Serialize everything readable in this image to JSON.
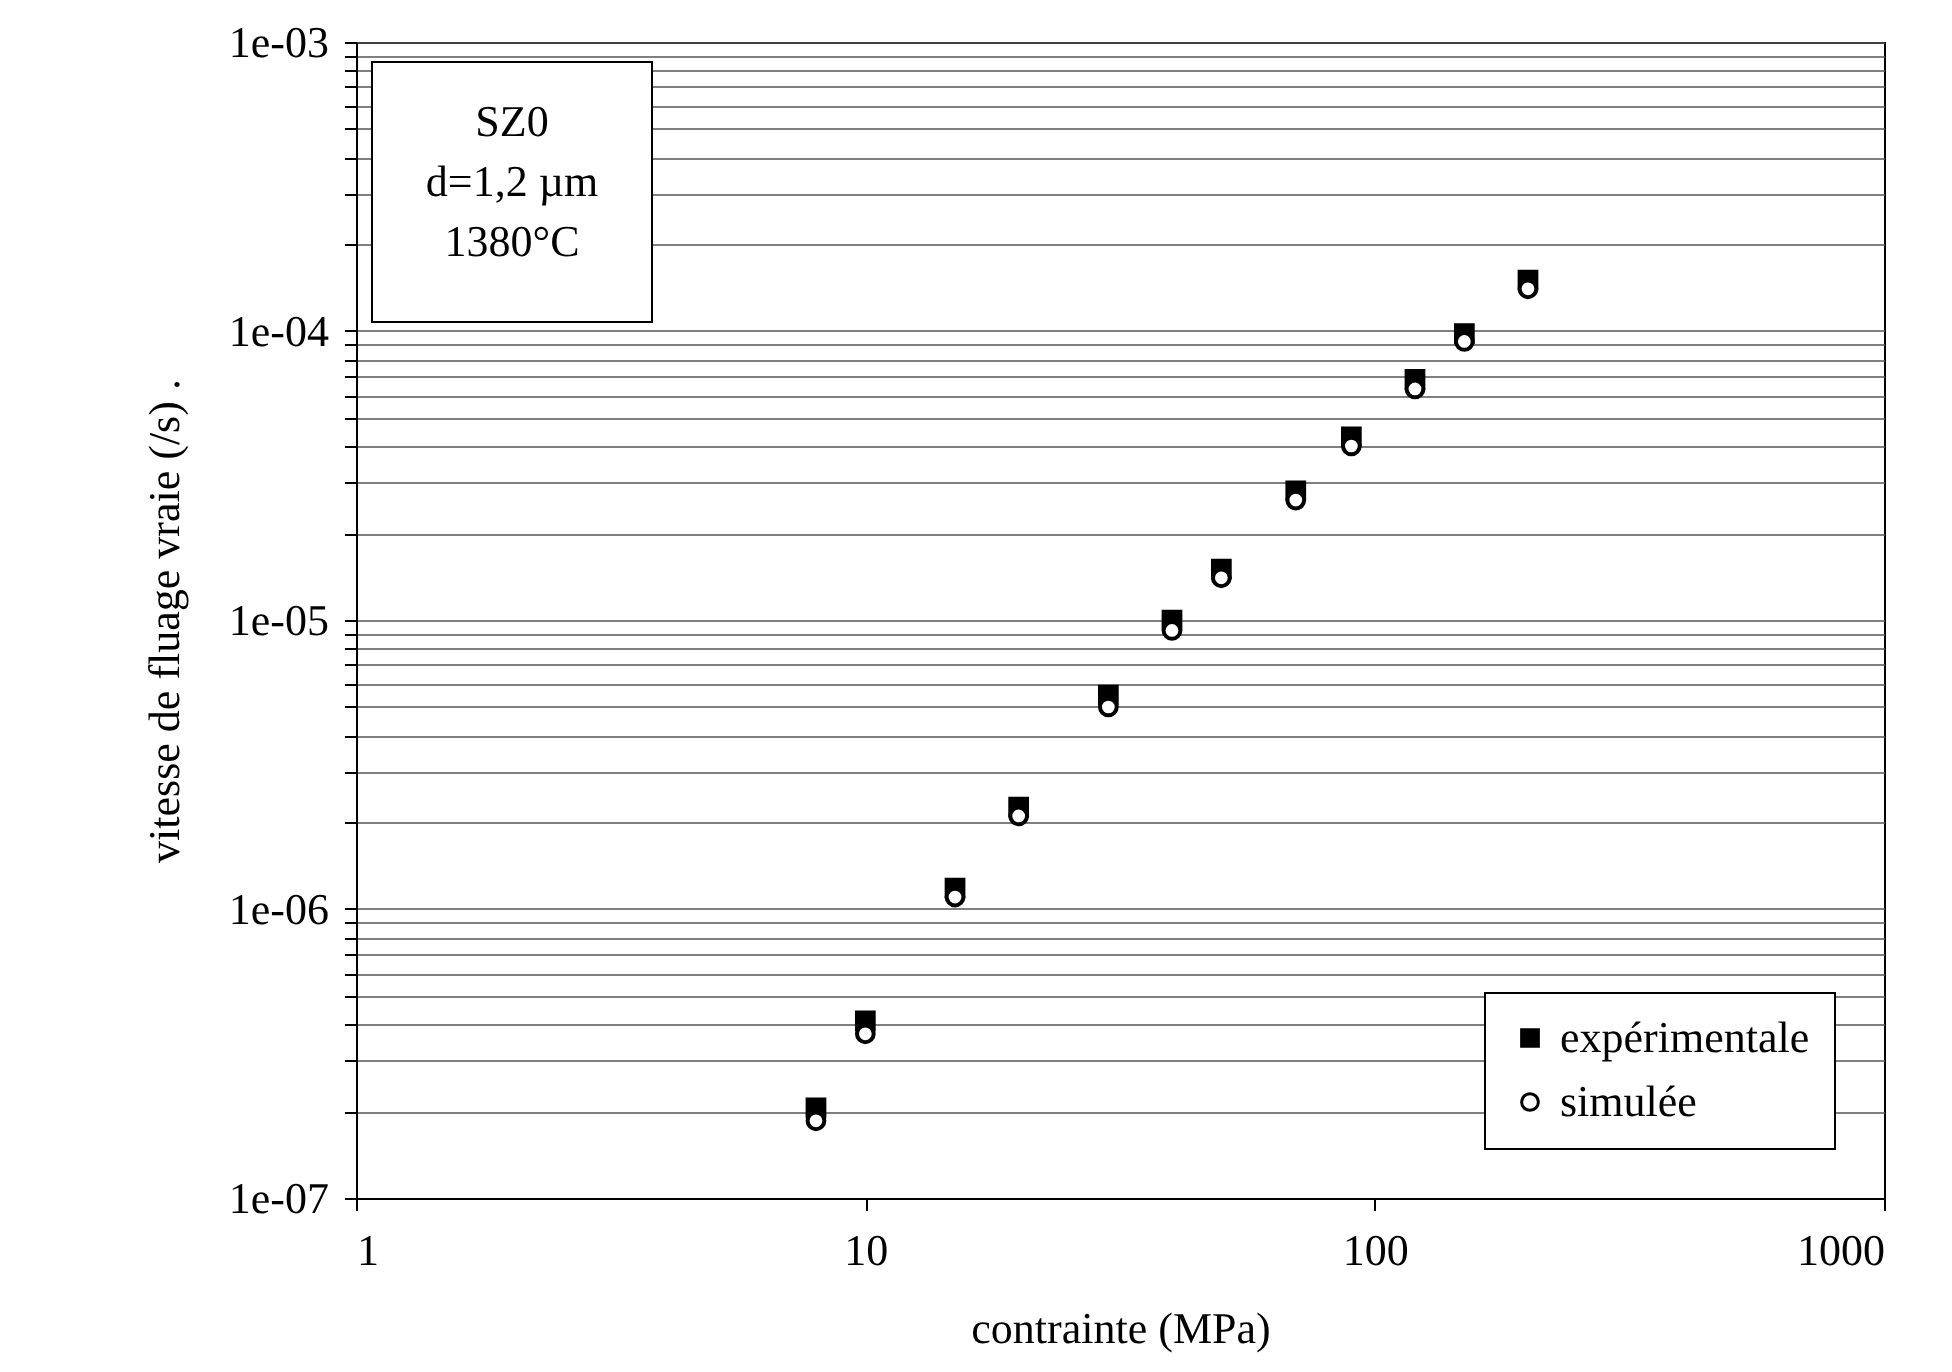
{
  "chart_data": {
    "type": "scatter",
    "xlabel": "contrainte (MPa)",
    "ylabel": "vitesse de fluage vraie (/s)  .",
    "log": "xy",
    "grid": "y",
    "legend": "bottom right",
    "annotations": [
      "SZ0",
      "d=1,2 µm",
      "1380°C"
    ],
    "x": [
      8,
      10,
      15,
      20,
      30,
      40,
      50,
      70,
      90,
      120,
      150,
      200
    ],
    "series": [
      {
        "name": "expérimentale",
        "color": "#000000",
        "marker": "square",
        "values": [
          2.05e-07,
          4.1e-07,
          1.18e-06,
          2.25e-06,
          5.5e-06,
          1e-05,
          1.5e-05,
          2.8e-05,
          4.3e-05,
          6.8e-05,
          9.8e-05,
          0.00015
        ]
      },
      {
        "name": "simulée",
        "color": "#000000",
        "marker": "circle",
        "values": [
          1.85e-07,
          3.7e-07,
          1.1e-06,
          2.1e-06,
          5e-06,
          9.2e-06,
          1.4e-05,
          2.6e-05,
          4e-05,
          6.3e-05,
          9.2e-05,
          0.00014
        ]
      }
    ],
    "xlim": [
      1,
      1000
    ],
    "xticks": [
      1,
      10,
      100,
      1000
    ],
    "ylim": [
      1e-07,
      0.001
    ],
    "yticks": [
      {
        "value": 1e-07,
        "label": "1e-07"
      },
      {
        "value": 2e-07,
        "label": null
      },
      {
        "value": 3e-07,
        "label": null
      },
      {
        "value": 4e-07,
        "label": null
      },
      {
        "value": 5e-07,
        "label": null
      },
      {
        "value": 6e-07,
        "label": null
      },
      {
        "value": 7e-07,
        "label": null
      },
      {
        "value": 8e-07,
        "label": null
      },
      {
        "value": 9e-07,
        "label": null
      },
      {
        "value": 1e-06,
        "label": "1e-06"
      },
      {
        "value": 2e-06,
        "label": null
      },
      {
        "value": 3e-06,
        "label": null
      },
      {
        "value": 4e-06,
        "label": null
      },
      {
        "value": 5e-06,
        "label": null
      },
      {
        "value": 6e-06,
        "label": null
      },
      {
        "value": 7e-06,
        "label": null
      },
      {
        "value": 8e-06,
        "label": null
      },
      {
        "value": 9e-06,
        "label": null
      },
      {
        "value": 1e-05,
        "label": "1e-05"
      },
      {
        "value": 2e-05,
        "label": null
      },
      {
        "value": 3e-05,
        "label": null
      },
      {
        "value": 4e-05,
        "label": null
      },
      {
        "value": 5e-05,
        "label": null
      },
      {
        "value": 6e-05,
        "label": null
      },
      {
        "value": 7e-05,
        "label": null
      },
      {
        "value": 8e-05,
        "label": null
      },
      {
        "value": 9e-05,
        "label": null
      },
      {
        "value": 0.0001,
        "label": "1e-04"
      },
      {
        "value": 0.0002,
        "label": null
      },
      {
        "value": 0.0003,
        "label": null
      },
      {
        "value": 0.0004,
        "label": null
      },
      {
        "value": 0.0005,
        "label": null
      },
      {
        "value": 0.0006,
        "label": null
      },
      {
        "value": 0.0007,
        "label": null
      },
      {
        "value": 0.0008,
        "label": null
      },
      {
        "value": 0.0009,
        "label": null
      },
      {
        "value": 0.001,
        "label": "1e-03"
      }
    ]
  }
}
